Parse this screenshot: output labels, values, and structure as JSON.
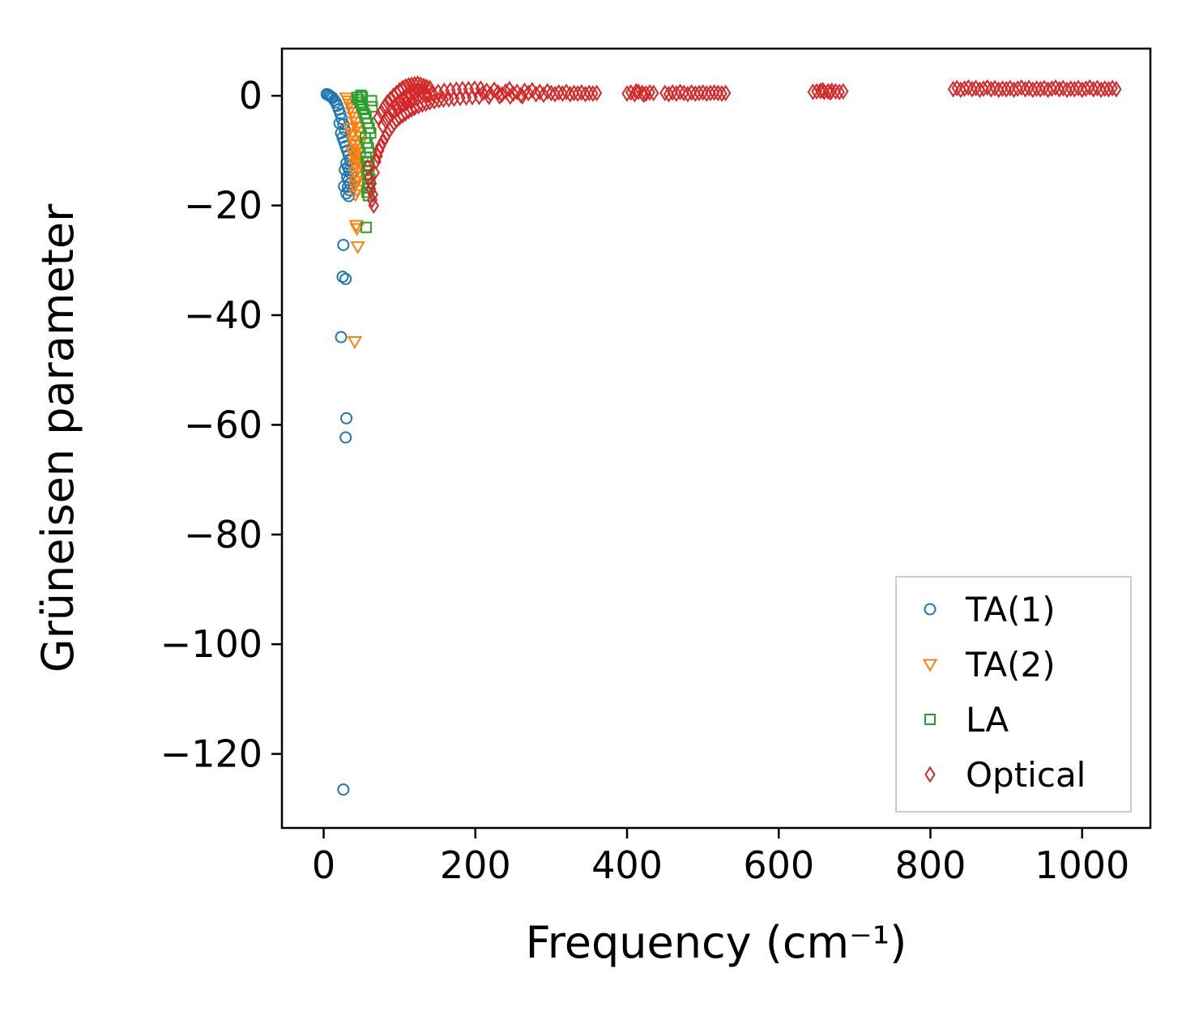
{
  "chart_data": {
    "type": "scatter",
    "title": "",
    "xlabel": "Frequency (cm⁻¹)",
    "ylabel": "Grüneisen parameter",
    "xlim": [
      -55,
      1090
    ],
    "ylim": [
      -133.5,
      8.6
    ],
    "x_ticks": [
      0,
      200,
      400,
      600,
      800,
      1000
    ],
    "y_ticks": [
      0,
      -20,
      -40,
      -60,
      -80,
      -100,
      -120
    ],
    "grid": false,
    "legend_position": "lower right",
    "series": [
      {
        "name": "TA(1)",
        "marker": "circle",
        "color": "#1f77b4",
        "points": [
          [
            4,
            0.3
          ],
          [
            6,
            0.2
          ],
          [
            8,
            0.0
          ],
          [
            10,
            -0.2
          ],
          [
            12,
            -0.4
          ],
          [
            14,
            -0.8
          ],
          [
            16,
            -1.2
          ],
          [
            18,
            -1.8
          ],
          [
            20,
            -2.5
          ],
          [
            22,
            -3.3
          ],
          [
            24,
            -4.2
          ],
          [
            26,
            -5.2
          ],
          [
            28,
            -6.2
          ],
          [
            21,
            -5.0
          ],
          [
            23,
            -6.8
          ],
          [
            25,
            -7.6
          ],
          [
            27,
            -8.4
          ],
          [
            29,
            -9.2
          ],
          [
            31,
            -10.0
          ],
          [
            33,
            -10.8
          ],
          [
            35,
            -11.6
          ],
          [
            30,
            -12.3
          ],
          [
            32,
            -13.0
          ],
          [
            34,
            -13.6
          ],
          [
            36,
            -14.2
          ],
          [
            31,
            -14.8
          ],
          [
            33,
            -15.4
          ],
          [
            35,
            -16.0
          ],
          [
            32,
            -16.6
          ],
          [
            34,
            -17.2
          ],
          [
            30,
            -17.8
          ],
          [
            33,
            -18.3
          ],
          [
            28,
            -13.5
          ],
          [
            27,
            -16.5
          ],
          [
            26,
            -27.2
          ],
          [
            25,
            -33.0
          ],
          [
            29,
            -33.4
          ],
          [
            23,
            -44.0
          ],
          [
            30,
            -58.8
          ],
          [
            29,
            -62.3
          ],
          [
            26,
            -126.5
          ]
        ]
      },
      {
        "name": "TA(2)",
        "marker": "triangle-down",
        "color": "#ff7f0e",
        "points": [
          [
            30,
            -0.4
          ],
          [
            32,
            -0.9
          ],
          [
            34,
            -1.5
          ],
          [
            36,
            -2.2
          ],
          [
            38,
            -3.0
          ],
          [
            40,
            -3.9
          ],
          [
            42,
            -4.8
          ],
          [
            44,
            -5.7
          ],
          [
            46,
            -6.6
          ],
          [
            48,
            -7.4
          ],
          [
            39,
            -8.2
          ],
          [
            41,
            -9.0
          ],
          [
            43,
            -9.7
          ],
          [
            45,
            -10.4
          ],
          [
            40,
            -10.9
          ],
          [
            42,
            -11.4
          ],
          [
            44,
            -11.9
          ],
          [
            41,
            -12.4
          ],
          [
            43,
            -12.9
          ],
          [
            45,
            -13.4
          ],
          [
            42,
            -14.0
          ],
          [
            44,
            -14.8
          ],
          [
            43,
            -15.6
          ],
          [
            41,
            -16.4
          ],
          [
            44,
            -17.2
          ],
          [
            42,
            -18.0
          ],
          [
            45,
            -27.5
          ],
          [
            44,
            -24.2
          ],
          [
            43,
            -23.6
          ],
          [
            41,
            -44.8
          ],
          [
            35,
            -6.0
          ],
          [
            37,
            -7.0
          ],
          [
            47,
            -8.8
          ],
          [
            46,
            -12.0
          ],
          [
            38,
            -10.2
          ]
        ]
      },
      {
        "name": "LA",
        "marker": "square",
        "color": "#2ca02c",
        "points": [
          [
            44,
            -0.3
          ],
          [
            46,
            -0.7
          ],
          [
            48,
            -1.2
          ],
          [
            50,
            -1.8
          ],
          [
            52,
            -2.5
          ],
          [
            54,
            -3.3
          ],
          [
            56,
            -4.1
          ],
          [
            58,
            -5.0
          ],
          [
            60,
            -5.9
          ],
          [
            62,
            -6.8
          ],
          [
            55,
            -7.7
          ],
          [
            57,
            -8.6
          ],
          [
            59,
            -9.5
          ],
          [
            61,
            -10.4
          ],
          [
            56,
            -11.2
          ],
          [
            58,
            -12.0
          ],
          [
            60,
            -12.8
          ],
          [
            57,
            -13.6
          ],
          [
            59,
            -14.4
          ],
          [
            61,
            -15.2
          ],
          [
            58,
            -16.0
          ],
          [
            60,
            -16.8
          ],
          [
            57,
            -17.6
          ],
          [
            59,
            -18.2
          ],
          [
            56,
            -24.0
          ],
          [
            63,
            -0.9
          ],
          [
            64,
            -2.0
          ],
          [
            49,
            0.1
          ],
          [
            51,
            -0.2
          ]
        ]
      },
      {
        "name": "Optical",
        "marker": "diamond",
        "color": "#d62728",
        "points": [
          [
            58,
            -13
          ],
          [
            60,
            -15
          ],
          [
            62,
            -17
          ],
          [
            64,
            -19
          ],
          [
            66,
            -20
          ],
          [
            63,
            -16
          ],
          [
            65,
            -18
          ],
          [
            67,
            -14
          ],
          [
            69,
            -12
          ],
          [
            71,
            -11
          ],
          [
            73,
            -10
          ],
          [
            75,
            -9.2
          ],
          [
            78,
            -8.4
          ],
          [
            81,
            -7.6
          ],
          [
            84,
            -6.9
          ],
          [
            87,
            -6.2
          ],
          [
            90,
            -5.6
          ],
          [
            93,
            -5
          ],
          [
            96,
            -4.5
          ],
          [
            100,
            -4
          ],
          [
            104,
            -3.6
          ],
          [
            108,
            -3.2
          ],
          [
            112,
            -2.8
          ],
          [
            116,
            -2.5
          ],
          [
            120,
            -2.2
          ],
          [
            125,
            -1.9
          ],
          [
            130,
            -1.6
          ],
          [
            135,
            -1.4
          ],
          [
            140,
            -1.2
          ],
          [
            146,
            -1
          ],
          [
            152,
            -0.8
          ],
          [
            158,
            -0.7
          ],
          [
            165,
            -0.6
          ],
          [
            172,
            -0.5
          ],
          [
            180,
            -0.4
          ],
          [
            188,
            -0.3
          ],
          [
            196,
            -0.25
          ],
          [
            205,
            -0.2
          ],
          [
            72,
            -4
          ],
          [
            76,
            -3
          ],
          [
            80,
            -2
          ],
          [
            84,
            -1.2
          ],
          [
            88,
            -0.6
          ],
          [
            92,
            0
          ],
          [
            96,
            0.5
          ],
          [
            100,
            1
          ],
          [
            104,
            1.4
          ],
          [
            108,
            1.7
          ],
          [
            112,
            1.9
          ],
          [
            116,
            2
          ],
          [
            120,
            2.1
          ],
          [
            124,
            2.2
          ],
          [
            128,
            2
          ],
          [
            132,
            1.8
          ],
          [
            136,
            1.6
          ],
          [
            140,
            1.4
          ],
          [
            90,
            -2.5
          ],
          [
            95,
            -1.8
          ],
          [
            100,
            -1.2
          ],
          [
            105,
            -0.7
          ],
          [
            110,
            -0.3
          ],
          [
            115,
            0.2
          ],
          [
            120,
            0.6
          ],
          [
            125,
            1
          ],
          [
            130,
            0.8
          ],
          [
            135,
            0.5
          ],
          [
            78,
            -5.5
          ],
          [
            82,
            -4.6
          ],
          [
            86,
            -3.8
          ],
          [
            91,
            -3.1
          ],
          [
            97,
            -2.4
          ],
          [
            103,
            -1.8
          ],
          [
            109,
            -1.3
          ],
          [
            117,
            -0.9
          ],
          [
            123,
            -0.5
          ],
          [
            129,
            -0.2
          ],
          [
            137,
            0.1
          ],
          [
            144,
            0.4
          ],
          [
            151,
            0.7
          ],
          [
            159,
            0.9
          ],
          [
            167,
            1
          ],
          [
            175,
            1.1
          ],
          [
            183,
            1.2
          ],
          [
            191,
            1.2
          ],
          [
            199,
            1.3
          ],
          [
            207,
            1.3
          ],
          [
            210,
            0.5
          ],
          [
            215,
            0.9
          ],
          [
            220,
            0.3
          ],
          [
            225,
            1.1
          ],
          [
            230,
            0.6
          ],
          [
            235,
            0.2
          ],
          [
            240,
            0.8
          ],
          [
            245,
            1.2
          ],
          [
            250,
            0.4
          ],
          [
            255,
            0.7
          ],
          [
            260,
            0.1
          ],
          [
            265,
            0.9
          ],
          [
            270,
            0.5
          ],
          [
            275,
            1
          ],
          [
            280,
            0.3
          ],
          [
            285,
            0.7
          ],
          [
            290,
            0.2
          ],
          [
            295,
            0.8
          ],
          [
            300,
            0.5
          ],
          [
            305,
            0.3
          ],
          [
            310,
            0.6
          ],
          [
            315,
            0.4
          ],
          [
            320,
            0.7
          ],
          [
            325,
            0.3
          ],
          [
            330,
            0.5
          ],
          [
            335,
            0.4
          ],
          [
            340,
            0.6
          ],
          [
            345,
            0.3
          ],
          [
            350,
            0.5
          ],
          [
            355,
            0.4
          ],
          [
            360,
            0.5
          ],
          [
            218,
            -0.2
          ],
          [
            232,
            -0.1
          ],
          [
            246,
            -0.15
          ],
          [
            262,
            -0.1
          ],
          [
            400,
            0.4
          ],
          [
            405,
            0.6
          ],
          [
            410,
            0.3
          ],
          [
            415,
            0.7
          ],
          [
            420,
            0.5
          ],
          [
            425,
            0.4
          ],
          [
            430,
            0.6
          ],
          [
            435,
            0.5
          ],
          [
            412,
            0.8
          ],
          [
            422,
            0.2
          ],
          [
            450,
            0.5
          ],
          [
            455,
            0.3
          ],
          [
            460,
            0.6
          ],
          [
            465,
            0.4
          ],
          [
            470,
            0.7
          ],
          [
            475,
            0.5
          ],
          [
            480,
            0.3
          ],
          [
            485,
            0.6
          ],
          [
            490,
            0.4
          ],
          [
            495,
            0.5
          ],
          [
            500,
            0.6
          ],
          [
            505,
            0.4
          ],
          [
            510,
            0.5
          ],
          [
            515,
            0.6
          ],
          [
            520,
            0.5
          ],
          [
            525,
            0.4
          ],
          [
            530,
            0.5
          ],
          [
            645,
            0.7
          ],
          [
            650,
            0.8
          ],
          [
            655,
            0.9
          ],
          [
            660,
            0.7
          ],
          [
            665,
            0.8
          ],
          [
            670,
            0.9
          ],
          [
            675,
            0.8
          ],
          [
            680,
            0.7
          ],
          [
            685,
            0.8
          ],
          [
            658,
            1
          ],
          [
            668,
            0.6
          ],
          [
            830,
            1.2
          ],
          [
            835,
            1.4
          ],
          [
            840,
            1.1
          ],
          [
            845,
            1.3
          ],
          [
            850,
            1.5
          ],
          [
            855,
            1.2
          ],
          [
            860,
            1.4
          ],
          [
            865,
            1.1
          ],
          [
            870,
            1.3
          ],
          [
            875,
            1.5
          ],
          [
            880,
            1.2
          ],
          [
            885,
            1.4
          ],
          [
            890,
            1.1
          ],
          [
            895,
            1.3
          ],
          [
            900,
            1.2
          ],
          [
            905,
            1.4
          ],
          [
            910,
            1.1
          ],
          [
            915,
            1.3
          ],
          [
            920,
            1.5
          ],
          [
            925,
            1.2
          ],
          [
            930,
            1.4
          ],
          [
            935,
            1.1
          ],
          [
            940,
            1.3
          ],
          [
            945,
            1.2
          ],
          [
            950,
            1.4
          ],
          [
            955,
            1.1
          ],
          [
            960,
            1.3
          ],
          [
            965,
            1.5
          ],
          [
            970,
            1.2
          ],
          [
            975,
            1.4
          ],
          [
            980,
            1.1
          ],
          [
            985,
            1.3
          ],
          [
            990,
            1.2
          ],
          [
            995,
            1.4
          ],
          [
            1000,
            1.1
          ],
          [
            1005,
            1.3
          ],
          [
            1010,
            1.5
          ],
          [
            1015,
            1.2
          ],
          [
            1020,
            1.4
          ],
          [
            1025,
            1.1
          ],
          [
            1030,
            1.3
          ],
          [
            1035,
            1.2
          ],
          [
            1040,
            1.4
          ],
          [
            1045,
            1.2
          ]
        ]
      }
    ]
  }
}
